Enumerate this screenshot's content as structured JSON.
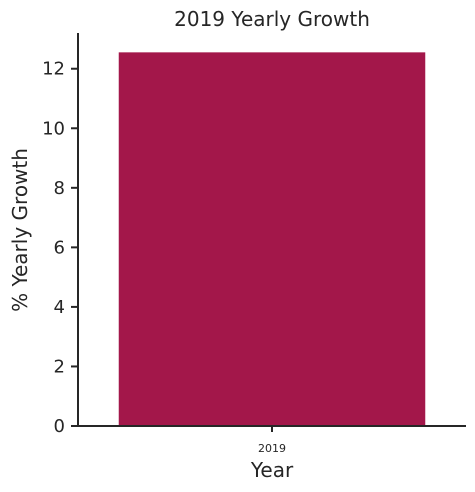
{
  "chart_data": {
    "type": "bar",
    "title": "2019 Yearly Growth",
    "xlabel": "Year",
    "ylabel": "% Yearly Growth",
    "categories": [
      "2019"
    ],
    "values": [
      12.55
    ],
    "ylim": [
      0,
      13.2
    ],
    "yticks": [
      0,
      2,
      4,
      6,
      8,
      10,
      12
    ],
    "grid": false,
    "bar_color": "#a3174a",
    "axis_color": "#262626"
  }
}
